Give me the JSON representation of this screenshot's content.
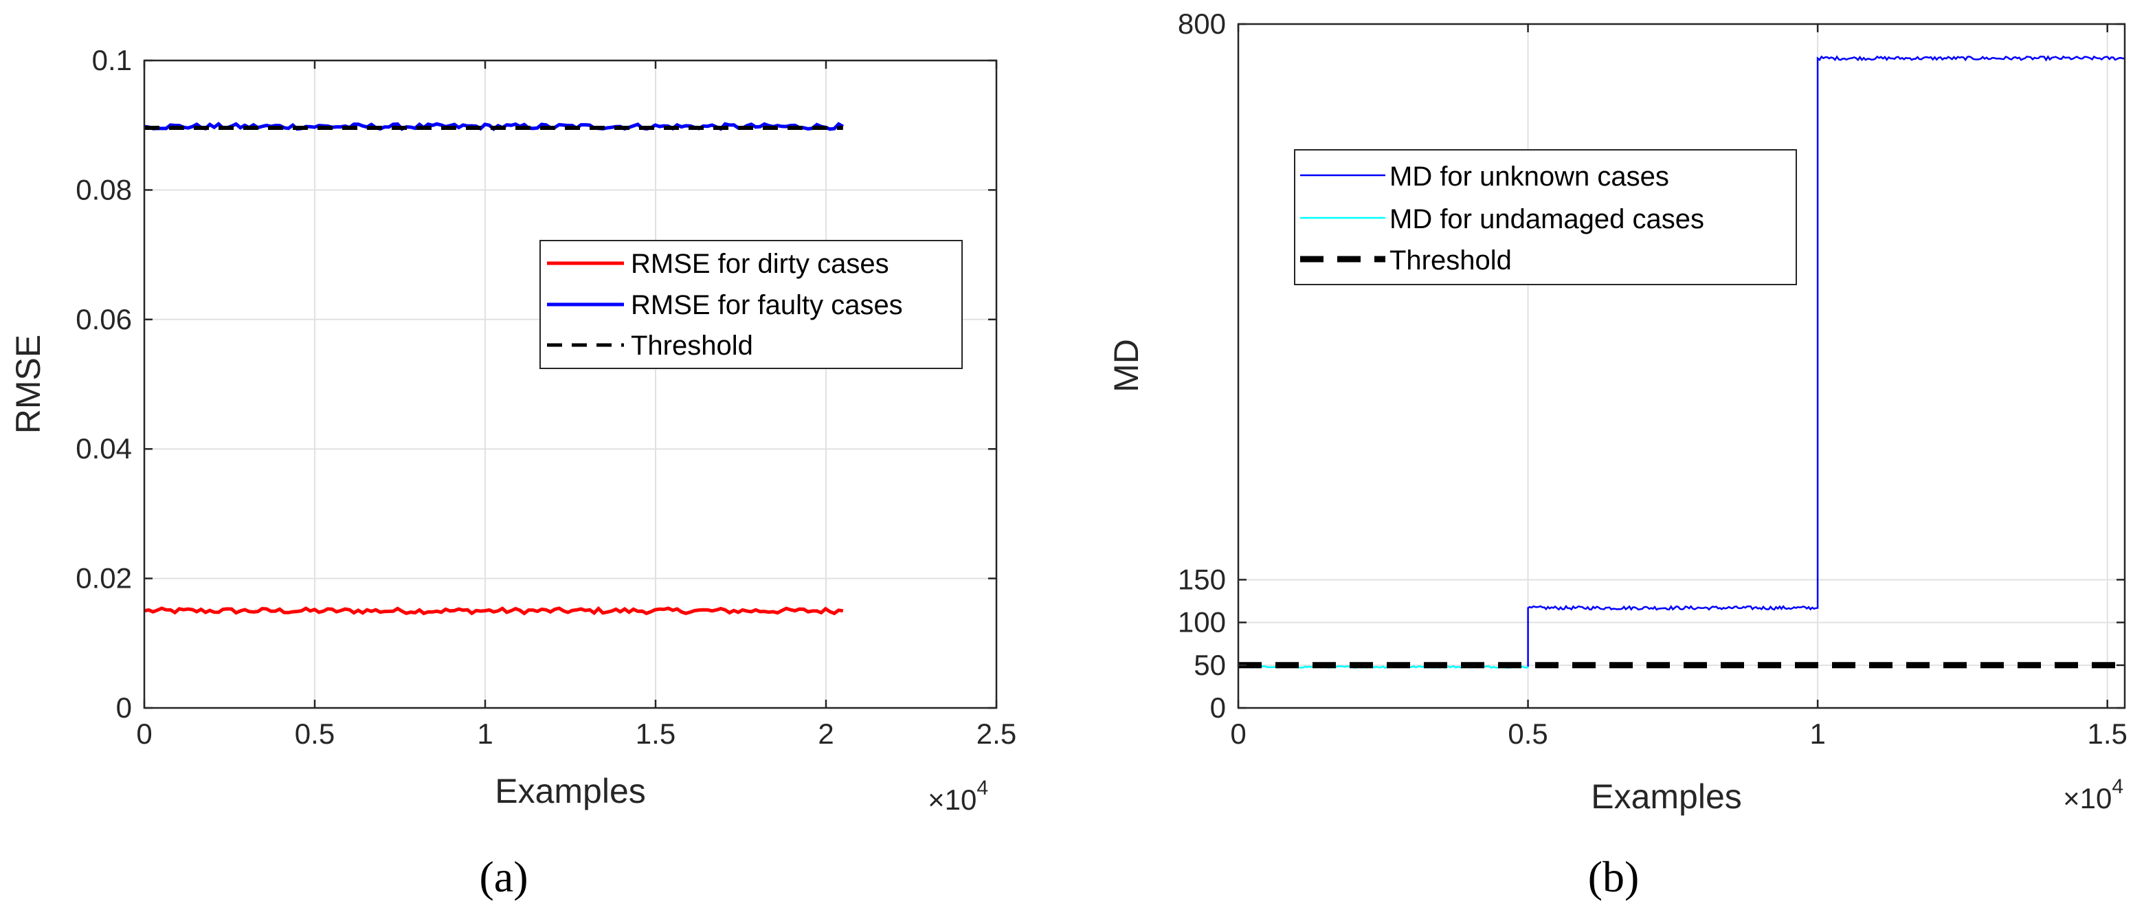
{
  "chart_data": [
    {
      "id": "a",
      "type": "line",
      "caption": "(a)",
      "xlabel": "Examples",
      "ylabel": "RMSE",
      "xlim": [
        0,
        25000
      ],
      "ylim": [
        0,
        0.1
      ],
      "x_ticks": [
        0,
        5000,
        10000,
        15000,
        20000,
        25000
      ],
      "x_tick_labels": [
        "0",
        "0.5",
        "1",
        "1.5",
        "2",
        "2.5"
      ],
      "y_ticks": [
        0,
        0.02,
        0.04,
        0.06,
        0.08,
        0.1
      ],
      "y_tick_labels": [
        "0",
        "0.02",
        "0.04",
        "0.06",
        "0.08",
        "0.1"
      ],
      "x_exponent": {
        "base": "×10",
        "power": "4"
      },
      "grid": true,
      "legend_position": "right-middle",
      "series": [
        {
          "name": "RMSE for dirty cases",
          "color": "#ff0000",
          "style": "solid",
          "x": [
            0,
            20500
          ],
          "values": [
            0.015,
            0.015
          ],
          "noise": 0.0004
        },
        {
          "name": "RMSE for faulty cases",
          "color": "#0000ff",
          "style": "solid",
          "x": [
            0,
            20500
          ],
          "values": [
            0.0898,
            0.0898
          ],
          "noise": 0.0004
        },
        {
          "name": "Threshold",
          "color": "#000000",
          "style": "dashed",
          "x": [
            0,
            20500
          ],
          "values": [
            0.0896,
            0.0896
          ],
          "noise": 0
        }
      ]
    },
    {
      "id": "b",
      "type": "line",
      "caption": "(b)",
      "xlabel": "Examples",
      "ylabel": "MD",
      "xlim": [
        0,
        15300
      ],
      "ylim": [
        0,
        800
      ],
      "x_ticks": [
        0,
        5000,
        10000,
        15000
      ],
      "x_tick_labels": [
        "0",
        "0.5",
        "1",
        "1.5"
      ],
      "y_ticks": [
        0,
        50,
        100,
        150,
        800
      ],
      "y_tick_labels": [
        "0",
        "50",
        "100",
        "150",
        "800"
      ],
      "x_exponent": {
        "base": "×10",
        "power": "4"
      },
      "grid": true,
      "legend_position": "top-left",
      "series": [
        {
          "name": "MD for unknown cases",
          "color": "#0000ff",
          "style": "solid",
          "x": [
            5000,
            5000,
            10000,
            10000,
            15300
          ],
          "values": [
            48,
            117,
            117,
            760,
            760
          ],
          "noise": 2
        },
        {
          "name": "MD for undamaged cases",
          "color": "#00ffff",
          "style": "solid",
          "x": [
            0,
            5000
          ],
          "values": [
            48,
            48
          ],
          "noise": 1
        },
        {
          "name": "Threshold",
          "color": "#000000",
          "style": "dashed",
          "x": [
            0,
            15300
          ],
          "values": [
            50,
            50
          ],
          "noise": 0
        }
      ]
    }
  ]
}
